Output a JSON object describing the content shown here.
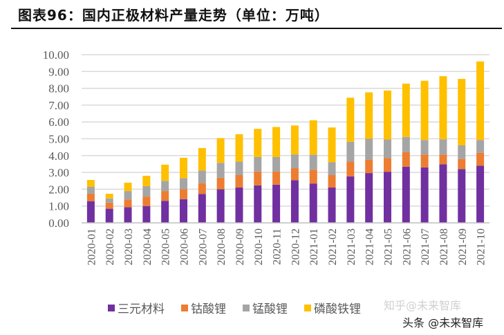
{
  "title": "图表96：国内正极材料产量走势（单位：万吨）",
  "watermarks": [
    "知乎@未来智库",
    "头条 @未来智库"
  ],
  "colors": {
    "三元材料": "#7030A0",
    "钴酸锂": "#ED7D31",
    "锰酸锂": "#A5A5A5",
    "磷酸铁锂": "#FFC000"
  },
  "chart_data": {
    "type": "bar",
    "stacked": true,
    "title": "国内正极材料产量走势（单位：万吨）",
    "xlabel": "",
    "ylabel": "",
    "ylim": [
      0,
      10
    ],
    "yticks": [
      "0.00",
      "1.00",
      "2.00",
      "3.00",
      "4.00",
      "5.00",
      "6.00",
      "7.00",
      "8.00",
      "9.00",
      "10.00"
    ],
    "grid": true,
    "legend_position": "bottom",
    "categories": [
      "2020-01",
      "2020-02",
      "2020-03",
      "2020-04",
      "2020-05",
      "2020-06",
      "2020-07",
      "2020-08",
      "2020-09",
      "2020-10",
      "2020-11",
      "2020-12",
      "2021-01",
      "2021-02",
      "2021-03",
      "2021-04",
      "2021-05",
      "2021-06",
      "2021-07",
      "2021-08",
      "2021-09",
      "2021-10"
    ],
    "series": [
      {
        "name": "三元材料",
        "values": [
          1.29,
          0.84,
          0.93,
          1.0,
          1.31,
          1.41,
          1.72,
          2.0,
          2.1,
          2.23,
          2.27,
          2.54,
          2.34,
          2.1,
          2.76,
          2.96,
          3.04,
          3.34,
          3.3,
          3.48,
          3.2,
          3.4
        ]
      },
      {
        "name": "钴酸锂",
        "values": [
          0.44,
          0.36,
          0.46,
          0.56,
          0.58,
          0.59,
          0.64,
          0.68,
          0.74,
          0.82,
          0.78,
          0.71,
          0.82,
          0.74,
          0.88,
          0.8,
          0.81,
          0.86,
          0.76,
          0.58,
          0.6,
          0.77
        ]
      },
      {
        "name": "锰酸锂",
        "values": [
          0.41,
          0.25,
          0.5,
          0.62,
          0.61,
          0.65,
          0.75,
          0.89,
          0.8,
          0.86,
          0.86,
          0.82,
          0.89,
          0.76,
          1.18,
          1.24,
          1.11,
          0.91,
          0.87,
          0.91,
          0.81,
          0.76
        ]
      },
      {
        "name": "磷酸铁锂",
        "values": [
          0.41,
          0.28,
          0.5,
          0.62,
          0.96,
          1.22,
          1.34,
          1.47,
          1.63,
          1.68,
          1.79,
          1.72,
          2.05,
          2.07,
          2.62,
          2.76,
          2.91,
          3.17,
          3.52,
          3.75,
          3.95,
          4.67
        ]
      }
    ]
  }
}
